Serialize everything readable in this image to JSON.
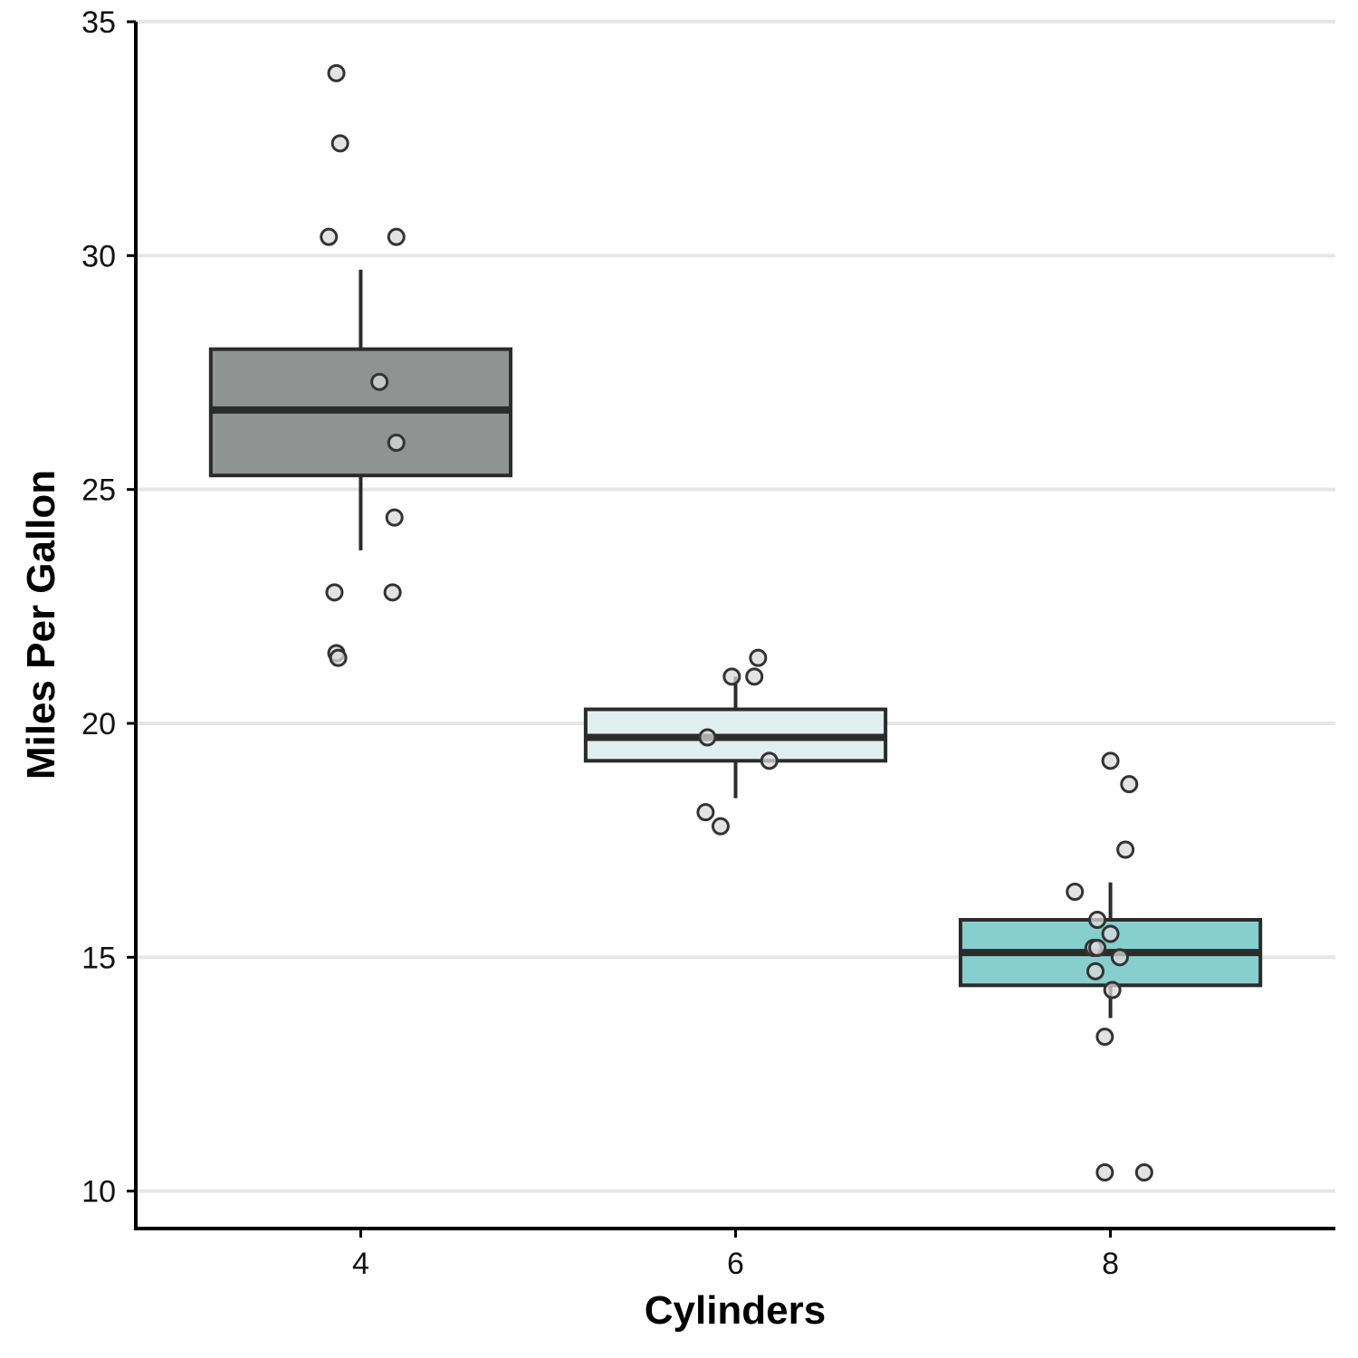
{
  "chart_data": {
    "type": "boxplot",
    "xlabel": "Cylinders",
    "ylabel": "Miles Per Gallon",
    "xlim": [
      2.8,
      9.2
    ],
    "ylim": [
      9.2,
      35.0
    ],
    "xticks": [
      4,
      6,
      8
    ],
    "yticks": [
      10,
      15,
      20,
      25,
      30,
      35
    ],
    "grid": "horizontal",
    "box_width": 1.6,
    "boxes": [
      {
        "x": 4,
        "color": "#8f9492",
        "min": 23.7,
        "q1": 25.3,
        "median": 26.7,
        "q3": 28.0,
        "max": 29.7
      },
      {
        "x": 6,
        "color": "#e1efee",
        "min": 18.4,
        "q1": 19.2,
        "median": 19.7,
        "q3": 20.3,
        "max": 21.0
      },
      {
        "x": 8,
        "color": "#87cfce",
        "min": 13.7,
        "q1": 14.4,
        "median": 15.1,
        "q3": 15.8,
        "max": 16.6
      }
    ],
    "points": [
      {
        "x": 3.87,
        "y": 33.9
      },
      {
        "x": 3.89,
        "y": 32.4
      },
      {
        "x": 3.83,
        "y": 30.4
      },
      {
        "x": 4.19,
        "y": 30.4
      },
      {
        "x": 4.1,
        "y": 27.3
      },
      {
        "x": 4.19,
        "y": 26.0
      },
      {
        "x": 4.18,
        "y": 24.4
      },
      {
        "x": 3.86,
        "y": 22.8
      },
      {
        "x": 4.17,
        "y": 22.8
      },
      {
        "x": 3.87,
        "y": 21.5
      },
      {
        "x": 3.88,
        "y": 21.4
      },
      {
        "x": 6.12,
        "y": 21.4
      },
      {
        "x": 5.98,
        "y": 21.0
      },
      {
        "x": 6.1,
        "y": 21.0
      },
      {
        "x": 5.85,
        "y": 19.7
      },
      {
        "x": 6.18,
        "y": 19.2
      },
      {
        "x": 5.84,
        "y": 18.1
      },
      {
        "x": 5.92,
        "y": 17.8
      },
      {
        "x": 8.0,
        "y": 19.2
      },
      {
        "x": 8.1,
        "y": 18.7
      },
      {
        "x": 8.08,
        "y": 17.3
      },
      {
        "x": 7.81,
        "y": 16.4
      },
      {
        "x": 7.93,
        "y": 15.8
      },
      {
        "x": 8.0,
        "y": 15.5
      },
      {
        "x": 7.91,
        "y": 15.2
      },
      {
        "x": 7.93,
        "y": 15.2
      },
      {
        "x": 8.05,
        "y": 15.0
      },
      {
        "x": 7.92,
        "y": 14.7
      },
      {
        "x": 8.01,
        "y": 14.3
      },
      {
        "x": 7.97,
        "y": 13.3
      },
      {
        "x": 7.97,
        "y": 10.4
      },
      {
        "x": 8.18,
        "y": 10.4
      }
    ]
  }
}
